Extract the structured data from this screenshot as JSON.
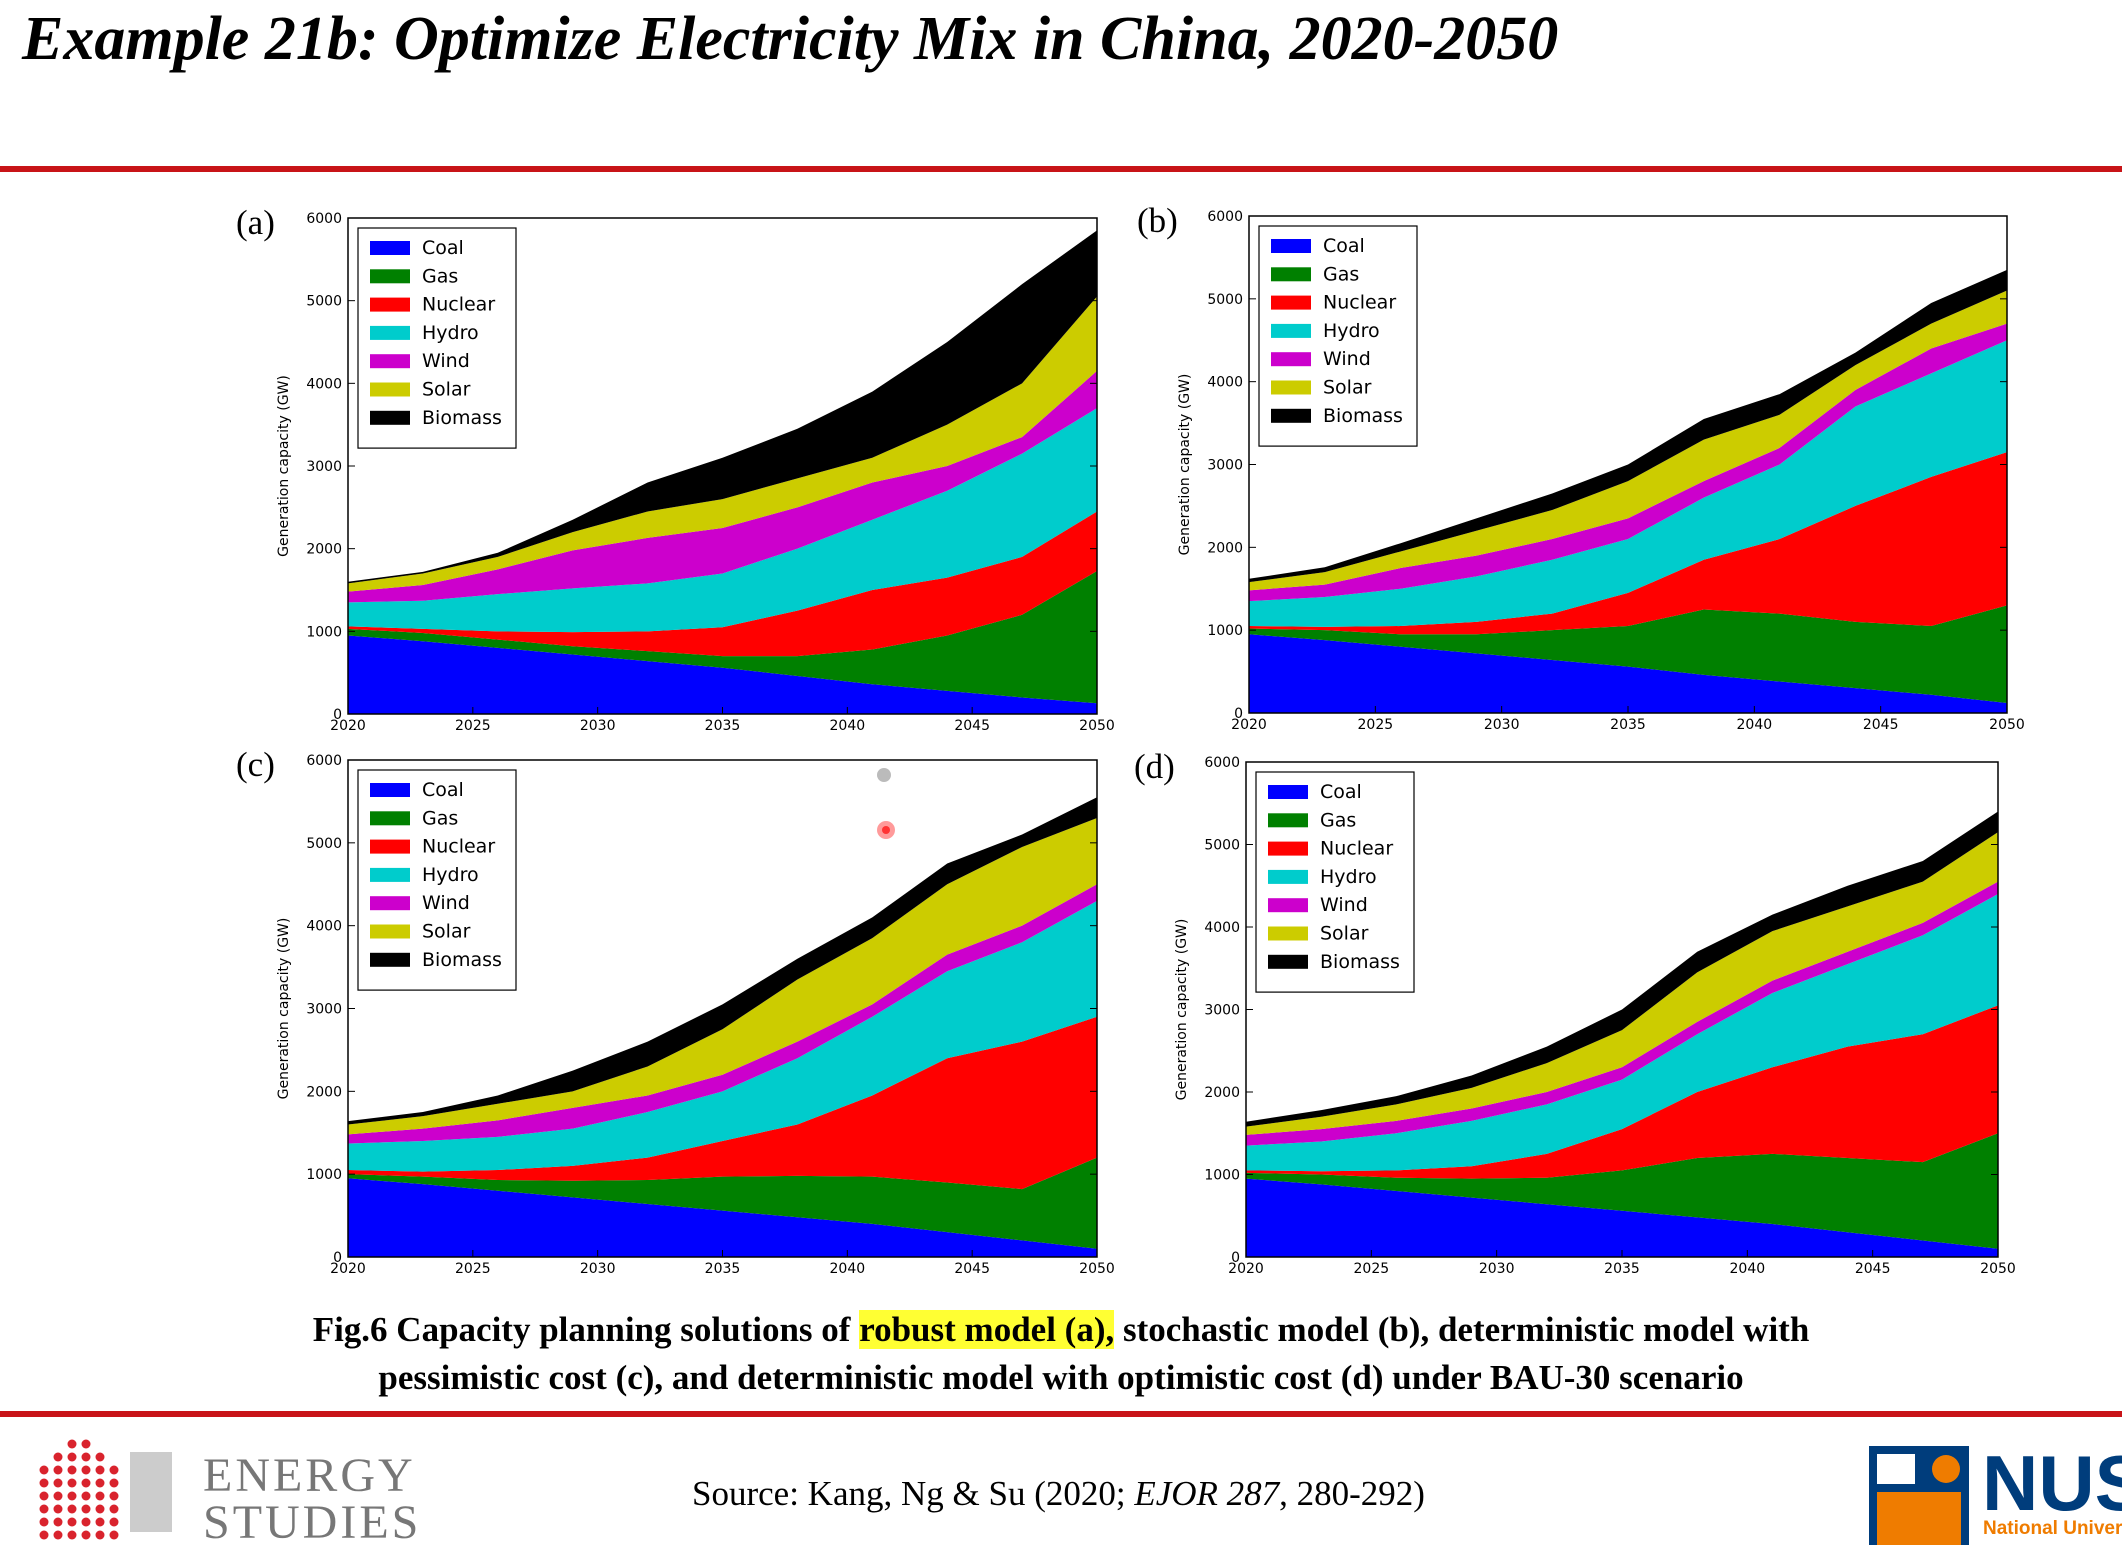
{
  "slide": {
    "title": "Example 21b: Optimize Electricity Mix in China, 2020-2050",
    "caption": [
      "Fig.6 Capacity planning solutions of ",
      "robust model (a),",
      " stochastic model (b), deterministic model with",
      "pessimistic cost (c), and deterministic model with optimistic cost (d) under BAU-30 scenario"
    ],
    "source": [
      "Source: Kang, Ng & Su (2020; ",
      "EJOR 287",
      ", 280-292)"
    ],
    "logo_left": [
      "ENERGY",
      "STUDIES"
    ],
    "logo_right": [
      "NUS",
      "National Univer"
    ]
  },
  "chart_data": [
    {
      "type": "area",
      "stacked": true,
      "panel": "(a)",
      "y_label": "Generation capacity (GW)",
      "legend": "upper left",
      "grid": false,
      "x": [
        2020,
        2023,
        2026,
        2029,
        2032,
        2035,
        2038,
        2041,
        2044,
        2047,
        2050
      ],
      "xlim": [
        2020,
        2050
      ],
      "xticks": [
        2020,
        2025,
        2030,
        2035,
        2040,
        2045,
        2050
      ],
      "ylim": [
        0,
        6000
      ],
      "yticks": [
        0,
        1000,
        2000,
        3000,
        4000,
        5000,
        6000
      ],
      "series": [
        {
          "name": "Coal",
          "color": "#0000ff",
          "values": [
            950,
            880,
            800,
            720,
            640,
            560,
            460,
            360,
            280,
            200,
            130
          ]
        },
        {
          "name": "Gas",
          "color": "#008000",
          "values": [
            80,
            100,
            100,
            100,
            120,
            140,
            240,
            420,
            670,
            1000,
            1600
          ]
        },
        {
          "name": "Nuclear",
          "color": "#ff0000",
          "values": [
            30,
            50,
            100,
            170,
            240,
            350,
            550,
            720,
            700,
            700,
            720
          ]
        },
        {
          "name": "Hydro",
          "color": "#00cccc",
          "values": [
            290,
            340,
            450,
            530,
            580,
            650,
            750,
            850,
            1050,
            1250,
            1250
          ]
        },
        {
          "name": "Wind",
          "color": "#cc00cc",
          "values": [
            130,
            190,
            300,
            460,
            550,
            550,
            500,
            450,
            300,
            200,
            450
          ]
        },
        {
          "name": "Solar",
          "color": "#cccc00",
          "values": [
            100,
            140,
            150,
            220,
            320,
            350,
            350,
            300,
            500,
            650,
            900
          ]
        },
        {
          "name": "Biomass",
          "color": "#000000",
          "values": [
            20,
            20,
            50,
            150,
            350,
            500,
            600,
            800,
            1000,
            1200,
            800
          ]
        }
      ]
    },
    {
      "type": "area",
      "stacked": true,
      "panel": "(b)",
      "y_label": "Generation capacity (GW)",
      "legend": "upper left",
      "grid": false,
      "x": [
        2020,
        2023,
        2026,
        2029,
        2032,
        2035,
        2038,
        2041,
        2044,
        2047,
        2050
      ],
      "xlim": [
        2020,
        2050
      ],
      "xticks": [
        2020,
        2025,
        2030,
        2035,
        2040,
        2045,
        2050
      ],
      "ylim": [
        0,
        6000
      ],
      "yticks": [
        0,
        1000,
        2000,
        3000,
        4000,
        5000,
        6000
      ],
      "series": [
        {
          "name": "Coal",
          "color": "#0000ff",
          "values": [
            950,
            880,
            800,
            720,
            640,
            560,
            460,
            380,
            300,
            220,
            120
          ]
        },
        {
          "name": "Gas",
          "color": "#008000",
          "values": [
            70,
            120,
            150,
            230,
            360,
            490,
            790,
            820,
            800,
            830,
            1180
          ]
        },
        {
          "name": "Nuclear",
          "color": "#ff0000",
          "values": [
            30,
            40,
            100,
            150,
            200,
            400,
            600,
            900,
            1400,
            1800,
            1850
          ]
        },
        {
          "name": "Hydro",
          "color": "#00cccc",
          "values": [
            300,
            360,
            450,
            550,
            650,
            650,
            750,
            900,
            1200,
            1250,
            1350
          ]
        },
        {
          "name": "Wind",
          "color": "#cc00cc",
          "values": [
            130,
            150,
            250,
            250,
            250,
            250,
            200,
            200,
            200,
            300,
            200
          ]
        },
        {
          "name": "Solar",
          "color": "#cccc00",
          "values": [
            100,
            150,
            200,
            300,
            350,
            450,
            500,
            400,
            300,
            300,
            400
          ]
        },
        {
          "name": "Biomass",
          "color": "#000000",
          "values": [
            40,
            60,
            100,
            150,
            200,
            200,
            250,
            250,
            150,
            250,
            250
          ]
        }
      ]
    },
    {
      "type": "area",
      "stacked": true,
      "panel": "(c)",
      "y_label": "Generation capacity (GW)",
      "legend": "upper left",
      "grid": false,
      "x": [
        2020,
        2023,
        2026,
        2029,
        2032,
        2035,
        2038,
        2041,
        2044,
        2047,
        2050
      ],
      "xlim": [
        2020,
        2050
      ],
      "xticks": [
        2020,
        2025,
        2030,
        2035,
        2040,
        2045,
        2050
      ],
      "ylim": [
        0,
        6000
      ],
      "yticks": [
        0,
        1000,
        2000,
        3000,
        4000,
        5000,
        6000
      ],
      "series": [
        {
          "name": "Coal",
          "color": "#0000ff",
          "values": [
            950,
            880,
            800,
            720,
            640,
            560,
            480,
            400,
            300,
            200,
            100
          ]
        },
        {
          "name": "Gas",
          "color": "#008000",
          "values": [
            50,
            90,
            130,
            200,
            290,
            410,
            500,
            570,
            600,
            620,
            1100
          ]
        },
        {
          "name": "Nuclear",
          "color": "#ff0000",
          "values": [
            50,
            60,
            120,
            180,
            270,
            430,
            620,
            980,
            1500,
            1780,
            1700
          ]
        },
        {
          "name": "Hydro",
          "color": "#00cccc",
          "values": [
            320,
            370,
            400,
            450,
            550,
            600,
            800,
            950,
            1050,
            1200,
            1400
          ]
        },
        {
          "name": "Wind",
          "color": "#cc00cc",
          "values": [
            110,
            150,
            200,
            250,
            200,
            200,
            200,
            150,
            200,
            200,
            200
          ]
        },
        {
          "name": "Solar",
          "color": "#cccc00",
          "values": [
            120,
            150,
            200,
            200,
            350,
            550,
            750,
            800,
            850,
            950,
            800
          ]
        },
        {
          "name": "Biomass",
          "color": "#000000",
          "values": [
            40,
            50,
            100,
            250,
            300,
            300,
            250,
            250,
            250,
            150,
            250
          ]
        }
      ]
    },
    {
      "type": "area",
      "stacked": true,
      "panel": "(d)",
      "y_label": "Generation capacity (GW)",
      "legend": "upper left",
      "grid": false,
      "x": [
        2020,
        2023,
        2026,
        2029,
        2032,
        2035,
        2038,
        2041,
        2044,
        2047,
        2050
      ],
      "xlim": [
        2020,
        2050
      ],
      "xticks": [
        2020,
        2025,
        2030,
        2035,
        2040,
        2045,
        2050
      ],
      "ylim": [
        0,
        6000
      ],
      "yticks": [
        0,
        1000,
        2000,
        3000,
        4000,
        5000,
        6000
      ],
      "series": [
        {
          "name": "Coal",
          "color": "#0000ff",
          "values": [
            950,
            880,
            800,
            720,
            640,
            560,
            480,
            400,
            300,
            200,
            100
          ]
        },
        {
          "name": "Gas",
          "color": "#008000",
          "values": [
            70,
            120,
            160,
            230,
            320,
            490,
            720,
            850,
            900,
            950,
            1400
          ]
        },
        {
          "name": "Nuclear",
          "color": "#ff0000",
          "values": [
            30,
            40,
            90,
            150,
            290,
            500,
            800,
            1050,
            1350,
            1550,
            1550
          ]
        },
        {
          "name": "Hydro",
          "color": "#00cccc",
          "values": [
            300,
            360,
            450,
            550,
            600,
            600,
            700,
            900,
            1000,
            1200,
            1350
          ]
        },
        {
          "name": "Wind",
          "color": "#cc00cc",
          "values": [
            130,
            150,
            150,
            150,
            150,
            150,
            150,
            150,
            150,
            150,
            150
          ]
        },
        {
          "name": "Solar",
          "color": "#cccc00",
          "values": [
            100,
            150,
            200,
            250,
            350,
            450,
            600,
            600,
            550,
            500,
            600
          ]
        },
        {
          "name": "Biomass",
          "color": "#000000",
          "values": [
            60,
            80,
            100,
            150,
            200,
            250,
            250,
            200,
            250,
            250,
            250
          ]
        }
      ]
    }
  ]
}
